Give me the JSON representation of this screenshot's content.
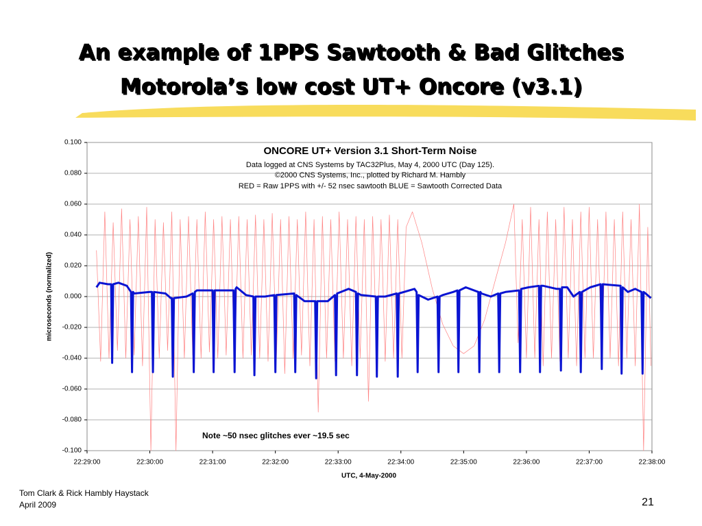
{
  "slide": {
    "title_lines": [
      "An example of 1PPS Sawtooth & Bad Glitches",
      "Motorola’s low cost UT+ Oncore (v3.1)"
    ],
    "footer_lines": [
      "Tom Clark & Rick Hambly Haystack",
      "April 2009"
    ],
    "page_number": 21
  },
  "chart_data": {
    "type": "line",
    "title": "ONCORE UT+ Version 3.1 Short-Term Noise",
    "subtitle_lines": [
      "Data logged at CNS Systems by TAC32Plus, May 4, 2000 UTC (Day 125).",
      "©2000 CNS Systems, Inc., plotted by Richard M. Hambly",
      "RED = Raw 1PPS with +/- 52 nsec sawtooth     BLUE = Sawtooth Corrected Data"
    ],
    "x_label": "UTC, 4-May-2000",
    "y_label": "microseconds (normalized)",
    "annotation": "Note ~50 nsec glitches ever ~19.5 sec",
    "xlim": [
      "22:29:00",
      "22:38:00"
    ],
    "xticks": [
      "22:29:00",
      "22:30:00",
      "22:31:00",
      "22:32:00",
      "22:33:00",
      "22:34:00",
      "22:35:00",
      "22:36:00",
      "22:37:00",
      "22:38:00"
    ],
    "ylim": [
      -0.1,
      0.1
    ],
    "yticks": [
      {
        "value": -0.1,
        "label": "-0.100"
      },
      {
        "value": -0.08,
        "label": "-0.080"
      },
      {
        "value": -0.06,
        "label": "-0.060"
      },
      {
        "value": -0.04,
        "label": "-0.040"
      },
      {
        "value": -0.02,
        "label": "-0.020"
      },
      {
        "value": 0,
        "label": "0.000"
      },
      {
        "value": 0.02,
        "label": "0.020"
      },
      {
        "value": 0.04,
        "label": "0.040"
      },
      {
        "value": 0.06,
        "label": "0.060"
      },
      {
        "value": 0.08,
        "label": "0.080"
      },
      {
        "value": 0.1,
        "label": "0.100"
      }
    ],
    "grid": true,
    "series": [
      {
        "color": "#ff8080",
        "width": 0.7,
        "x": [
          "22:29:09",
          "22:29:13",
          "22:29:17",
          "22:29:21",
          "22:29:25",
          "22:29:29",
          "22:29:33",
          "22:29:37",
          "22:29:41",
          "22:29:45",
          "22:29:49",
          "22:29:53",
          "22:29:57",
          "22:30:01",
          "22:30:05",
          "22:30:09",
          "22:30:13",
          "22:30:17",
          "22:30:21",
          "22:30:25",
          "22:30:29",
          "22:30:33",
          "22:30:37",
          "22:30:41",
          "22:30:45",
          "22:30:49",
          "22:30:53",
          "22:30:57",
          "22:31:01",
          "22:31:05",
          "22:31:09",
          "22:31:13",
          "22:31:17",
          "22:31:21",
          "22:31:25",
          "22:31:29",
          "22:31:33",
          "22:31:37",
          "22:31:41",
          "22:31:45",
          "22:31:49",
          "22:31:53",
          "22:31:57",
          "22:32:01",
          "22:32:05",
          "22:32:09",
          "22:32:13",
          "22:32:17",
          "22:32:21",
          "22:32:25",
          "22:32:29",
          "22:32:33",
          "22:32:37",
          "22:32:41",
          "22:32:45",
          "22:32:49",
          "22:32:53",
          "22:32:57",
          "22:33:01",
          "22:33:05",
          "22:33:09",
          "22:33:13",
          "22:33:17",
          "22:33:21",
          "22:33:25",
          "22:33:29",
          "22:33:33",
          "22:33:37",
          "22:33:41",
          "22:33:45",
          "22:33:49",
          "22:33:53",
          "22:33:57",
          "22:34:01",
          "22:34:05",
          "22:34:11",
          "22:34:20",
          "22:34:30",
          "22:34:40",
          "22:34:50",
          "22:35:00",
          "22:35:10",
          "22:35:20",
          "22:35:30",
          "22:35:40",
          "22:35:48",
          "22:35:52",
          "22:35:56",
          "22:36:00",
          "22:36:04",
          "22:36:08",
          "22:36:12",
          "22:36:16",
          "22:36:20",
          "22:36:24",
          "22:36:28",
          "22:36:32",
          "22:36:36",
          "22:36:40",
          "22:36:44",
          "22:36:48",
          "22:36:52",
          "22:36:56",
          "22:37:00",
          "22:37:04",
          "22:37:08",
          "22:37:12",
          "22:37:16",
          "22:37:20",
          "22:37:24",
          "22:37:28",
          "22:37:32",
          "22:37:36",
          "22:37:40",
          "22:37:44",
          "22:37:48",
          "22:37:52",
          "22:37:56",
          "22:37:59"
        ],
        "values": [
          0.03,
          -0.042,
          0.055,
          -0.04,
          0.048,
          -0.035,
          0.057,
          -0.04,
          0.05,
          -0.038,
          0.052,
          -0.045,
          0.058,
          -0.1,
          0.05,
          -0.04,
          0.048,
          -0.035,
          0.055,
          -0.1,
          0.05,
          -0.04,
          0.052,
          -0.038,
          0.05,
          -0.04,
          0.055,
          -0.036,
          0.05,
          -0.04,
          0.052,
          -0.038,
          0.05,
          -0.045,
          0.052,
          -0.04,
          0.05,
          -0.038,
          0.053,
          -0.04,
          0.05,
          -0.042,
          0.054,
          -0.04,
          0.05,
          -0.05,
          0.052,
          -0.04,
          0.05,
          -0.038,
          0.055,
          -0.045,
          0.05,
          -0.075,
          0.052,
          -0.04,
          0.05,
          -0.042,
          0.055,
          -0.04,
          0.05,
          -0.045,
          0.052,
          -0.04,
          0.05,
          -0.068,
          0.052,
          -0.04,
          0.05,
          -0.042,
          0.053,
          -0.04,
          0.05,
          -0.04,
          0.045,
          0.055,
          0.035,
          0.005,
          -0.018,
          -0.032,
          -0.037,
          -0.032,
          -0.015,
          0.01,
          0.035,
          0.06,
          -0.03,
          0.05,
          -0.04,
          0.058,
          -0.04,
          0.05,
          -0.045,
          0.055,
          -0.04,
          0.05,
          -0.042,
          0.058,
          -0.04,
          0.05,
          -0.045,
          0.055,
          -0.04,
          0.058,
          -0.04,
          0.05,
          -0.042,
          0.055,
          -0.04,
          0.05,
          -0.045,
          0.055,
          -0.04,
          0.05,
          -0.045,
          0.06,
          -0.1,
          0.045,
          -0.045
        ]
      },
      {
        "color": "#0a14d2",
        "width": 3,
        "x": [
          "22:29:09",
          "22:29:12",
          "22:29:20",
          "22:29:23",
          "22:29:24",
          "22:29:25",
          "22:29:30",
          "22:29:38",
          "22:29:42",
          "22:29:43",
          "22:29:44",
          "22:29:45",
          "22:30:00",
          "22:30:02",
          "22:30:03",
          "22:30:04",
          "22:30:15",
          "22:30:20",
          "22:30:21",
          "22:30:22",
          "22:30:23",
          "22:30:35",
          "22:30:41",
          "22:30:42",
          "22:30:43",
          "22:30:45",
          "22:31:00",
          "22:31:01",
          "22:31:02",
          "22:31:20",
          "22:31:21",
          "22:31:22",
          "22:31:23",
          "22:31:32",
          "22:31:39",
          "22:31:40",
          "22:31:41",
          "22:31:50",
          "22:31:59",
          "22:32:00",
          "22:32:01",
          "22:32:18",
          "22:32:19",
          "22:32:20",
          "22:32:28",
          "22:32:38",
          "22:32:39",
          "22:32:40",
          "22:32:50",
          "22:32:57",
          "22:32:58",
          "22:32:59",
          "22:33:10",
          "22:33:17",
          "22:33:18",
          "22:33:19",
          "22:33:22",
          "22:33:36",
          "22:33:37",
          "22:33:38",
          "22:33:45",
          "22:33:56",
          "22:33:57",
          "22:33:58",
          "22:34:13",
          "22:34:15",
          "22:34:16",
          "22:34:17",
          "22:34:26",
          "22:34:35",
          "22:34:36",
          "22:34:37",
          "22:34:40",
          "22:34:50",
          "22:34:54",
          "22:34:55",
          "22:34:56",
          "22:35:02",
          "22:35:14",
          "22:35:15",
          "22:35:16",
          "22:35:17",
          "22:35:26",
          "22:35:33",
          "22:35:34",
          "22:35:35",
          "22:35:40",
          "22:35:53",
          "22:35:54",
          "22:35:55",
          "22:36:02",
          "22:36:12",
          "22:36:13",
          "22:36:14",
          "22:36:16",
          "22:36:29",
          "22:36:32",
          "22:36:33",
          "22:36:34",
          "22:36:39",
          "22:36:45",
          "22:36:51",
          "22:36:52",
          "22:36:53",
          "22:37:01",
          "22:37:11",
          "22:37:12",
          "22:37:13",
          "22:37:30",
          "22:37:31",
          "22:37:32",
          "22:37:37",
          "22:37:44",
          "22:37:50",
          "22:37:51",
          "22:37:52",
          "22:37:54",
          "22:37:59"
        ],
        "values": [
          0.006,
          0.009,
          0.008,
          0.008,
          -0.043,
          0.008,
          0.009,
          0.007,
          0.003,
          -0.049,
          0.003,
          0.002,
          0.003,
          0.003,
          -0.049,
          0.003,
          0.002,
          -0.001,
          -0.001,
          -0.052,
          -0.001,
          0,
          0.002,
          -0.049,
          0.003,
          0.004,
          0.004,
          -0.049,
          0.004,
          0.004,
          -0.049,
          0.005,
          0.006,
          0.001,
          0,
          -0.051,
          0,
          0,
          0.001,
          -0.049,
          0.001,
          0.002,
          -0.049,
          0.001,
          -0.003,
          -0.003,
          -0.053,
          -0.003,
          -0.003,
          0.001,
          -0.051,
          0.002,
          0.005,
          0.003,
          -0.051,
          0.002,
          0.001,
          0,
          -0.052,
          0,
          0,
          0.002,
          -0.052,
          0.002,
          0.005,
          0.003,
          -0.049,
          0.001,
          -0.002,
          0,
          -0.049,
          0,
          0.001,
          0.003,
          0.004,
          -0.049,
          0.004,
          0.006,
          0.003,
          -0.049,
          0.003,
          0.002,
          0,
          0.002,
          -0.049,
          0.002,
          0.003,
          0.004,
          -0.049,
          0.005,
          0.006,
          0.007,
          -0.049,
          0.007,
          0.007,
          0.005,
          0.005,
          -0.048,
          0.006,
          0.006,
          0,
          0.003,
          -0.049,
          0.003,
          0.006,
          0.008,
          -0.047,
          0.008,
          0.007,
          -0.05,
          0.006,
          0.003,
          0.005,
          0.003,
          -0.05,
          0.003,
          0.002,
          -0.001
        ]
      }
    ]
  }
}
